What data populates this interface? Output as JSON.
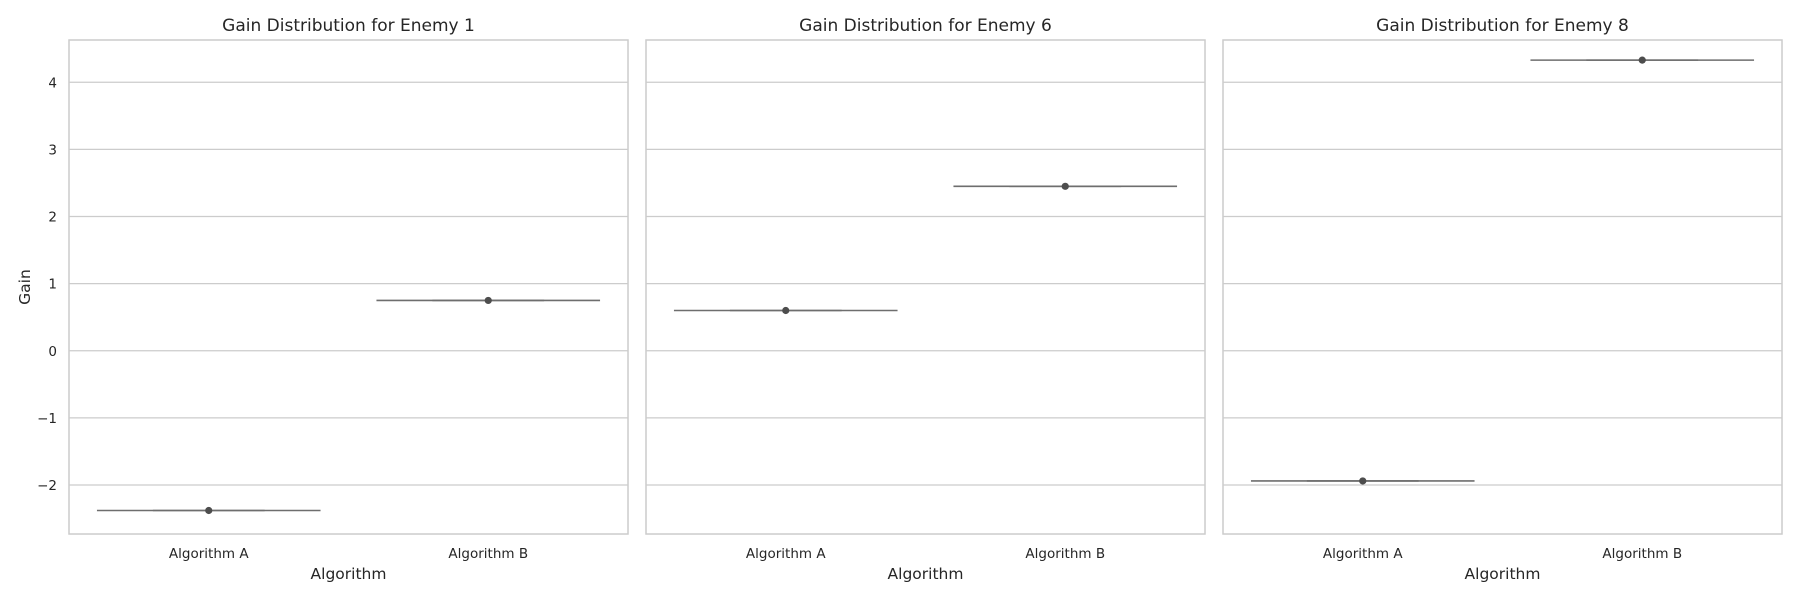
{
  "chart_data": [
    {
      "type": "box",
      "title": "Gain Distribution for Enemy 1",
      "xlabel": "Algorithm",
      "ylabel": "Gain",
      "categories": [
        "Algorithm A",
        "Algorithm B"
      ],
      "values": [
        -2.38,
        0.75
      ],
      "ylim": [
        -2.73,
        4.63
      ],
      "yticks": [
        -2,
        -1,
        0,
        1,
        2,
        3,
        4
      ],
      "ytick_labels": [
        "−2",
        "−1",
        "0",
        "1",
        "2",
        "3",
        "4"
      ],
      "grid": true
    },
    {
      "type": "box",
      "title": "Gain Distribution for Enemy 6",
      "xlabel": "Algorithm",
      "ylabel": "",
      "categories": [
        "Algorithm A",
        "Algorithm B"
      ],
      "values": [
        0.6,
        2.45
      ],
      "ylim": [
        -2.73,
        4.63
      ],
      "yticks": [
        -2,
        -1,
        0,
        1,
        2,
        3,
        4
      ],
      "grid": true
    },
    {
      "type": "box",
      "title": "Gain Distribution for Enemy 8",
      "xlabel": "Algorithm",
      "ylabel": "",
      "categories": [
        "Algorithm A",
        "Algorithm B"
      ],
      "values": [
        -1.94,
        4.33
      ],
      "ylim": [
        -2.73,
        4.63
      ],
      "yticks": [
        -2,
        -1,
        0,
        1,
        2,
        3,
        4
      ],
      "grid": true
    }
  ],
  "colors": {
    "grid": "#cccccc",
    "frame": "#cccccc",
    "box_line": "#6e6e6e",
    "median_dot": "#4d4d4d"
  }
}
